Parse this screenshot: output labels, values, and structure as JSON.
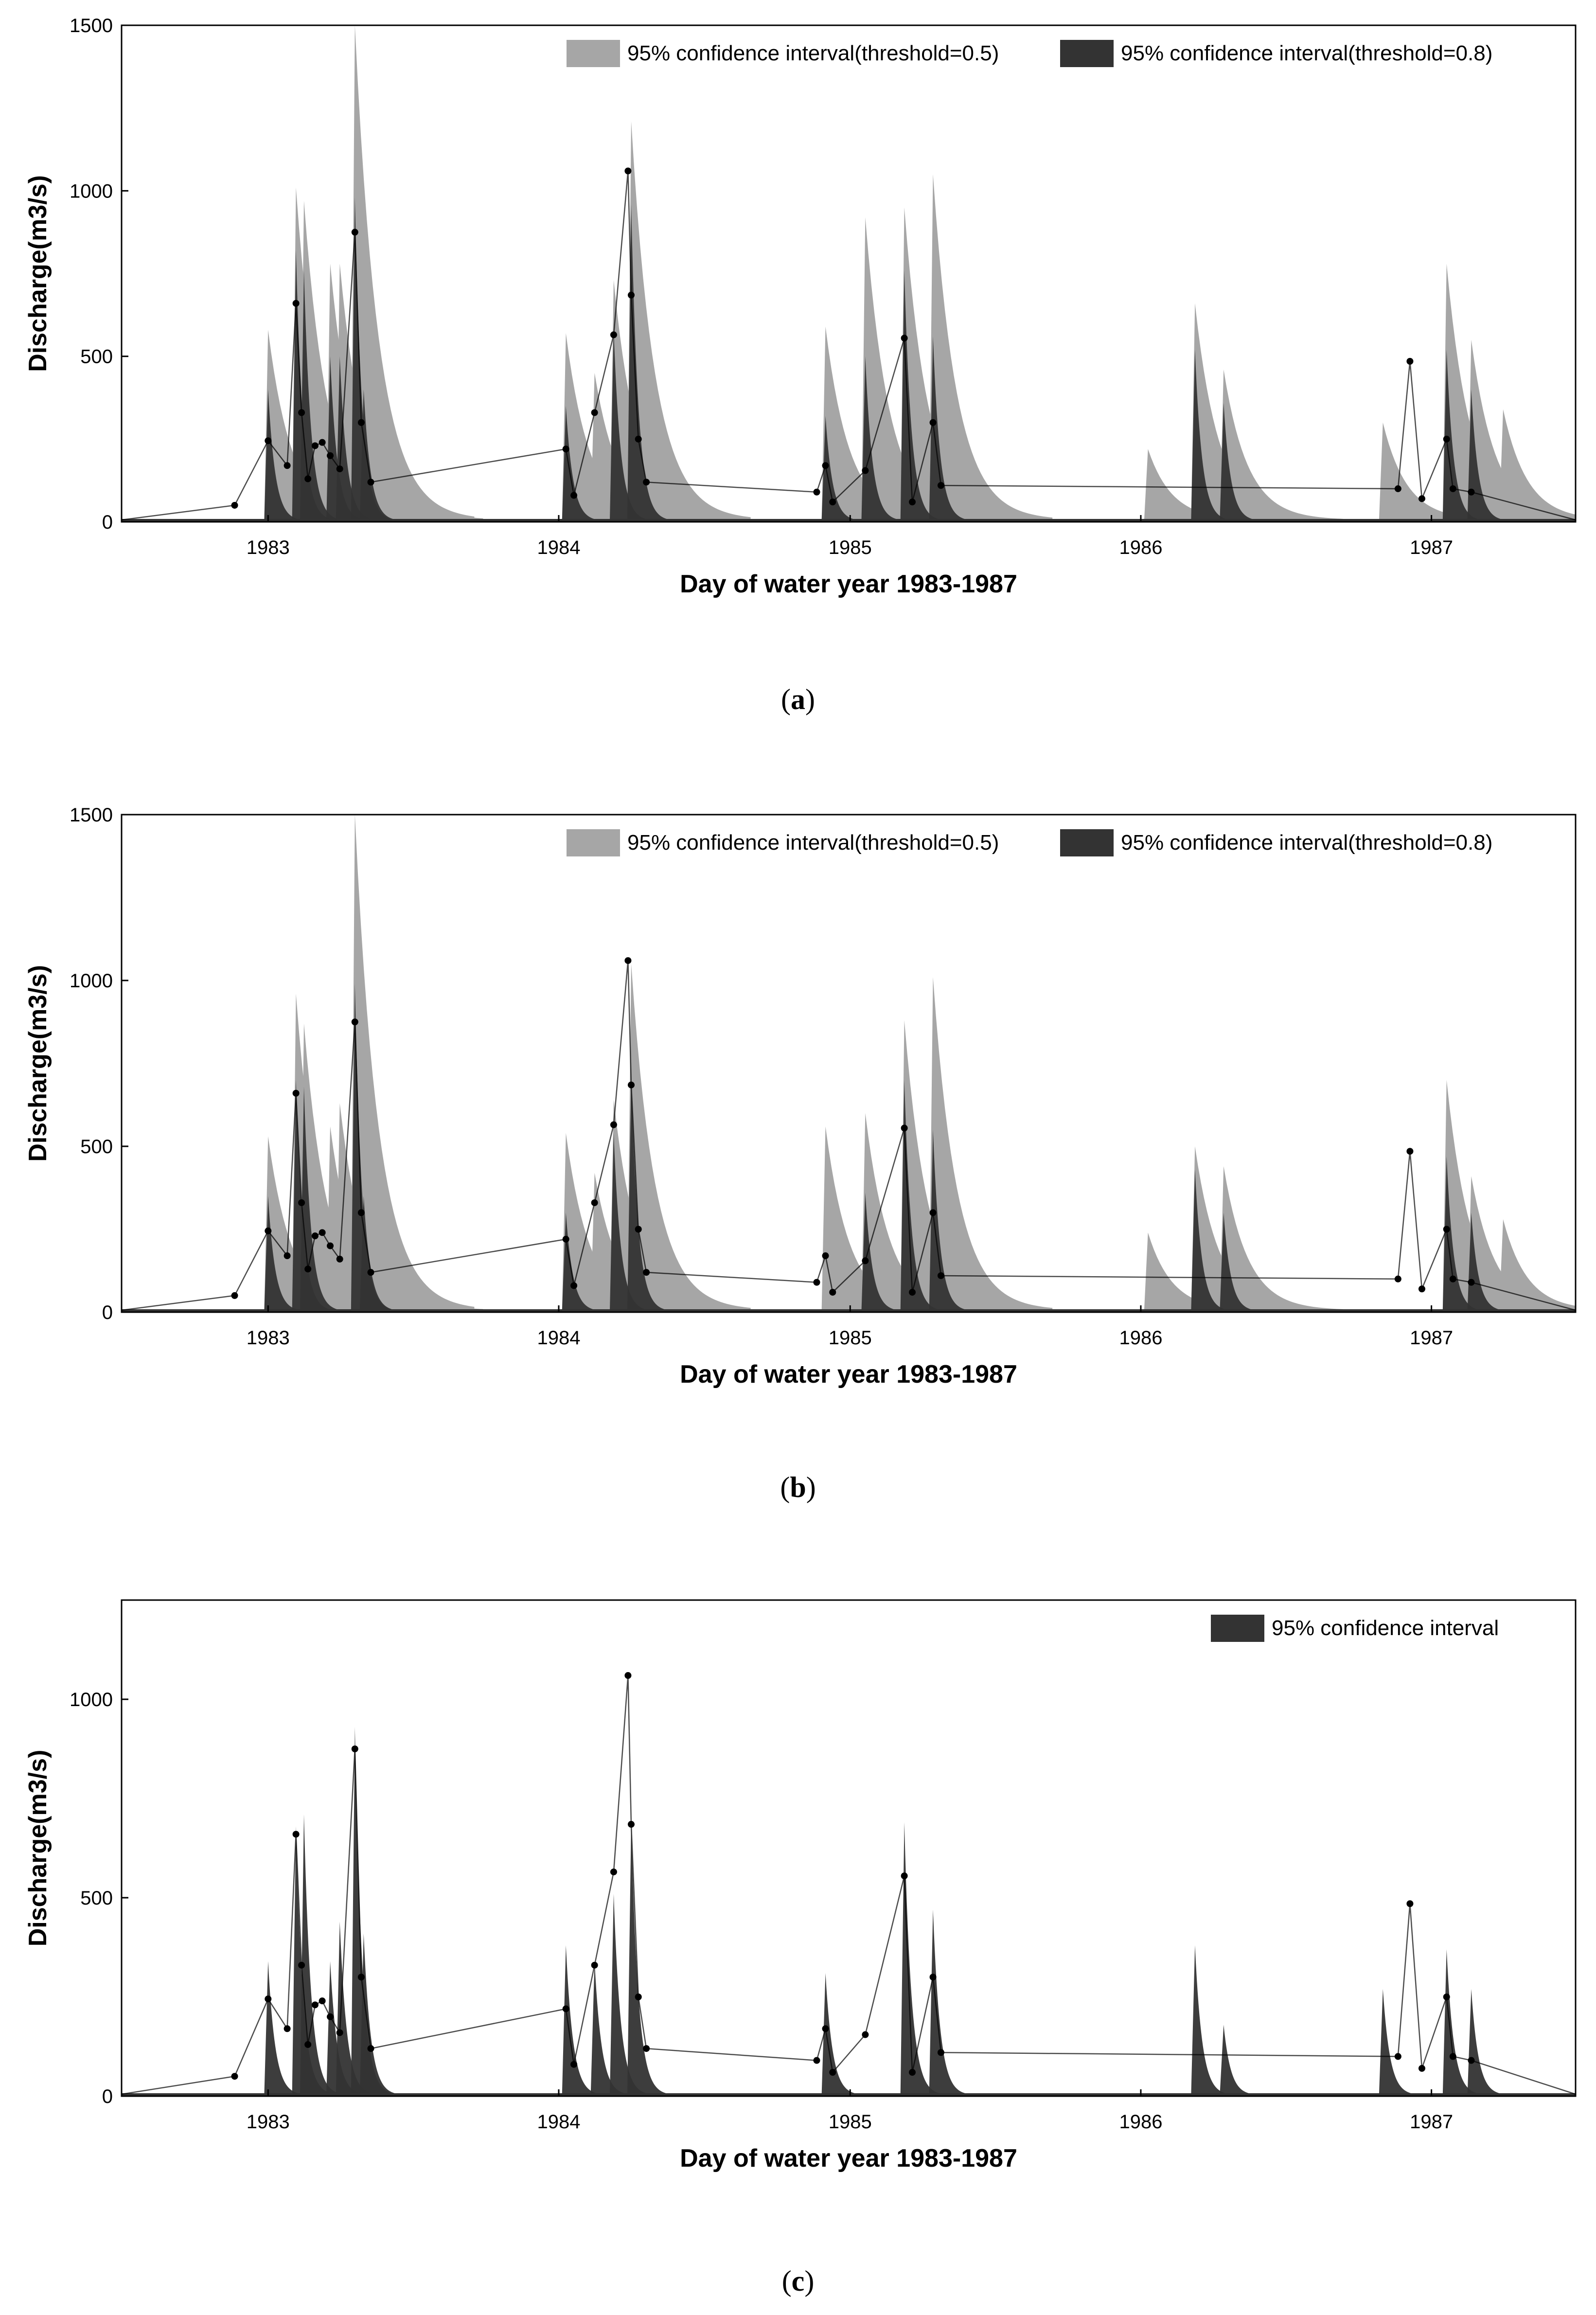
{
  "figure": {
    "panels": [
      {
        "caption_label": "a"
      },
      {
        "caption_label": "b"
      },
      {
        "caption_label": "c"
      }
    ]
  },
  "chart_data": [
    {
      "type": "area",
      "title": "",
      "xlabel": "Day of water year 1983-1987",
      "ylabel": "Discharge(m3/s)",
      "xlim": [
        "1982-07-01",
        "1987-07-01"
      ],
      "ylim": [
        0,
        1500
      ],
      "xticks": [
        "1983",
        "1984",
        "1985",
        "1986",
        "1987"
      ],
      "yticks": [
        0,
        500,
        1000,
        1500
      ],
      "grid": false,
      "legend_position": "top-right",
      "colors": {
        "band_light": "#a6a6a6",
        "band_dark": "#333333",
        "observed": "#000000"
      },
      "series": [
        {
          "name": "95% confidence interval(threshold=0.5)",
          "kind": "band",
          "peaks": [
            {
              "date": "1983-01-01",
              "value": 580
            },
            {
              "date": "1983-02-05",
              "value": 1010
            },
            {
              "date": "1983-02-15",
              "value": 970
            },
            {
              "date": "1983-03-10",
              "value": 400
            },
            {
              "date": "1983-03-20",
              "value": 780
            },
            {
              "date": "1983-04-01",
              "value": 780
            },
            {
              "date": "1983-04-20",
              "value": 1500
            },
            {
              "date": "1983-05-01",
              "value": 680
            },
            {
              "date": "1984-01-10",
              "value": 570
            },
            {
              "date": "1984-02-15",
              "value": 450
            },
            {
              "date": "1984-03-10",
              "value": 730
            },
            {
              "date": "1984-04-01",
              "value": 1210
            },
            {
              "date": "1984-12-01",
              "value": 590
            },
            {
              "date": "1985-01-20",
              "value": 920
            },
            {
              "date": "1985-03-10",
              "value": 950
            },
            {
              "date": "1985-04-15",
              "value": 1050
            },
            {
              "date": "1986-01-10",
              "value": 220
            },
            {
              "date": "1986-03-10",
              "value": 660
            },
            {
              "date": "1986-04-15",
              "value": 460
            },
            {
              "date": "1986-11-01",
              "value": 300
            },
            {
              "date": "1987-01-20",
              "value": 780
            },
            {
              "date": "1987-02-20",
              "value": 550
            },
            {
              "date": "1987-04-01",
              "value": 340
            }
          ]
        },
        {
          "name": "95% confidence interval(threshold=0.8)",
          "kind": "band",
          "peaks": [
            {
              "date": "1983-01-01",
              "value": 400
            },
            {
              "date": "1983-02-05",
              "value": 820
            },
            {
              "date": "1983-02-15",
              "value": 760
            },
            {
              "date": "1983-03-20",
              "value": 500
            },
            {
              "date": "1983-04-01",
              "value": 500
            },
            {
              "date": "1983-04-20",
              "value": 980
            },
            {
              "date": "1983-05-01",
              "value": 400
            },
            {
              "date": "1984-01-10",
              "value": 350
            },
            {
              "date": "1984-03-10",
              "value": 580
            },
            {
              "date": "1984-04-01",
              "value": 960
            },
            {
              "date": "1984-12-01",
              "value": 320
            },
            {
              "date": "1985-01-20",
              "value": 500
            },
            {
              "date": "1985-03-10",
              "value": 760
            },
            {
              "date": "1985-04-15",
              "value": 560
            },
            {
              "date": "1986-03-10",
              "value": 520
            },
            {
              "date": "1986-04-15",
              "value": 360
            },
            {
              "date": "1987-01-20",
              "value": 520
            },
            {
              "date": "1987-02-20",
              "value": 400
            }
          ]
        },
        {
          "name": "",
          "kind": "observed",
          "ref": "observed"
        }
      ]
    },
    {
      "type": "area",
      "title": "",
      "xlabel": "Day of water year 1983-1987",
      "ylabel": "Discharge(m3/s)",
      "xlim": [
        "1982-07-01",
        "1987-07-01"
      ],
      "ylim": [
        0,
        1500
      ],
      "xticks": [
        "1983",
        "1984",
        "1985",
        "1986",
        "1987"
      ],
      "yticks": [
        0,
        500,
        1000,
        1500
      ],
      "grid": false,
      "legend_position": "top-right",
      "colors": {
        "band_light": "#a6a6a6",
        "band_dark": "#333333",
        "observed": "#000000"
      },
      "series": [
        {
          "name": "95% confidence interval(threshold=0.5)",
          "kind": "band",
          "peaks": [
            {
              "date": "1983-01-01",
              "value": 530
            },
            {
              "date": "1983-02-05",
              "value": 960
            },
            {
              "date": "1983-02-15",
              "value": 870
            },
            {
              "date": "1983-03-20",
              "value": 560
            },
            {
              "date": "1983-04-01",
              "value": 630
            },
            {
              "date": "1983-04-20",
              "value": 1500
            },
            {
              "date": "1983-05-01",
              "value": 500
            },
            {
              "date": "1984-01-10",
              "value": 540
            },
            {
              "date": "1984-02-15",
              "value": 420
            },
            {
              "date": "1984-03-10",
              "value": 640
            },
            {
              "date": "1984-04-01",
              "value": 1050
            },
            {
              "date": "1984-12-01",
              "value": 560
            },
            {
              "date": "1985-01-20",
              "value": 600
            },
            {
              "date": "1985-03-10",
              "value": 880
            },
            {
              "date": "1985-04-15",
              "value": 1010
            },
            {
              "date": "1986-01-10",
              "value": 240
            },
            {
              "date": "1986-03-10",
              "value": 500
            },
            {
              "date": "1986-04-15",
              "value": 440
            },
            {
              "date": "1987-01-20",
              "value": 700
            },
            {
              "date": "1987-02-20",
              "value": 410
            },
            {
              "date": "1987-04-01",
              "value": 280
            }
          ]
        },
        {
          "name": "95% confidence interval(threshold=0.8)",
          "kind": "band",
          "peaks": [
            {
              "date": "1983-01-01",
              "value": 350
            },
            {
              "date": "1983-02-05",
              "value": 700
            },
            {
              "date": "1983-02-15",
              "value": 680
            },
            {
              "date": "1983-04-20",
              "value": 990
            },
            {
              "date": "1983-05-01",
              "value": 350
            },
            {
              "date": "1984-01-10",
              "value": 300
            },
            {
              "date": "1984-03-10",
              "value": 540
            },
            {
              "date": "1984-04-01",
              "value": 700
            },
            {
              "date": "1985-01-20",
              "value": 360
            },
            {
              "date": "1985-03-10",
              "value": 700
            },
            {
              "date": "1985-04-15",
              "value": 550
            },
            {
              "date": "1986-03-10",
              "value": 430
            },
            {
              "date": "1986-04-15",
              "value": 300
            },
            {
              "date": "1987-01-20",
              "value": 470
            },
            {
              "date": "1987-02-20",
              "value": 300
            }
          ]
        },
        {
          "name": "",
          "kind": "observed",
          "ref": "observed"
        }
      ]
    },
    {
      "type": "area",
      "title": "",
      "xlabel": "Day of water year 1983-1987",
      "ylabel": "Discharge(m3/s)",
      "xlim": [
        "1982-07-01",
        "1987-07-01"
      ],
      "ylim": [
        0,
        1250
      ],
      "xticks": [
        "1983",
        "1984",
        "1985",
        "1986",
        "1987"
      ],
      "yticks": [
        0,
        500,
        1000
      ],
      "grid": false,
      "legend_position": "top-right",
      "colors": {
        "band_dark": "#333333",
        "observed": "#000000"
      },
      "series": [
        {
          "name": "95% confidence interval",
          "kind": "band",
          "peaks": [
            {
              "date": "1983-01-01",
              "value": 340
            },
            {
              "date": "1983-02-05",
              "value": 680
            },
            {
              "date": "1983-02-15",
              "value": 710
            },
            {
              "date": "1983-03-20",
              "value": 340
            },
            {
              "date": "1983-04-01",
              "value": 440
            },
            {
              "date": "1983-04-20",
              "value": 930
            },
            {
              "date": "1983-05-01",
              "value": 410
            },
            {
              "date": "1984-01-10",
              "value": 380
            },
            {
              "date": "1984-02-15",
              "value": 340
            },
            {
              "date": "1984-03-10",
              "value": 510
            },
            {
              "date": "1984-04-01",
              "value": 690
            },
            {
              "date": "1984-12-01",
              "value": 310
            },
            {
              "date": "1985-03-10",
              "value": 690
            },
            {
              "date": "1985-04-15",
              "value": 470
            },
            {
              "date": "1986-03-10",
              "value": 380
            },
            {
              "date": "1986-04-15",
              "value": 180
            },
            {
              "date": "1986-11-01",
              "value": 270
            },
            {
              "date": "1987-01-20",
              "value": 370
            },
            {
              "date": "1987-02-20",
              "value": 270
            }
          ]
        },
        {
          "name": "",
          "kind": "observed",
          "ref": "observed"
        }
      ]
    }
  ],
  "observed": [
    {
      "date": "1982-11-20",
      "value": 50
    },
    {
      "date": "1983-01-01",
      "value": 245
    },
    {
      "date": "1983-01-25",
      "value": 170
    },
    {
      "date": "1983-02-05",
      "value": 660
    },
    {
      "date": "1983-02-12",
      "value": 330
    },
    {
      "date": "1983-02-20",
      "value": 130
    },
    {
      "date": "1983-03-01",
      "value": 230
    },
    {
      "date": "1983-03-10",
      "value": 240
    },
    {
      "date": "1983-03-20",
      "value": 200
    },
    {
      "date": "1983-04-01",
      "value": 160
    },
    {
      "date": "1983-04-20",
      "value": 875
    },
    {
      "date": "1983-04-28",
      "value": 300
    },
    {
      "date": "1983-05-10",
      "value": 120
    },
    {
      "date": "1984-01-10",
      "value": 220
    },
    {
      "date": "1984-01-20",
      "value": 80
    },
    {
      "date": "1984-02-15",
      "value": 330
    },
    {
      "date": "1984-03-10",
      "value": 565
    },
    {
      "date": "1984-03-28",
      "value": 1060
    },
    {
      "date": "1984-04-01",
      "value": 685
    },
    {
      "date": "1984-04-10",
      "value": 250
    },
    {
      "date": "1984-04-20",
      "value": 120
    },
    {
      "date": "1984-11-20",
      "value": 90
    },
    {
      "date": "1984-12-01",
      "value": 170
    },
    {
      "date": "1984-12-10",
      "value": 60
    },
    {
      "date": "1985-01-20",
      "value": 155
    },
    {
      "date": "1985-03-10",
      "value": 555
    },
    {
      "date": "1985-03-20",
      "value": 60
    },
    {
      "date": "1985-04-15",
      "value": 300
    },
    {
      "date": "1985-04-25",
      "value": 110
    },
    {
      "date": "1986-11-20",
      "value": 100
    },
    {
      "date": "1986-12-05",
      "value": 485
    },
    {
      "date": "1986-12-20",
      "value": 70
    },
    {
      "date": "1987-01-20",
      "value": 250
    },
    {
      "date": "1987-01-28",
      "value": 100
    },
    {
      "date": "1987-02-20",
      "value": 90
    }
  ]
}
